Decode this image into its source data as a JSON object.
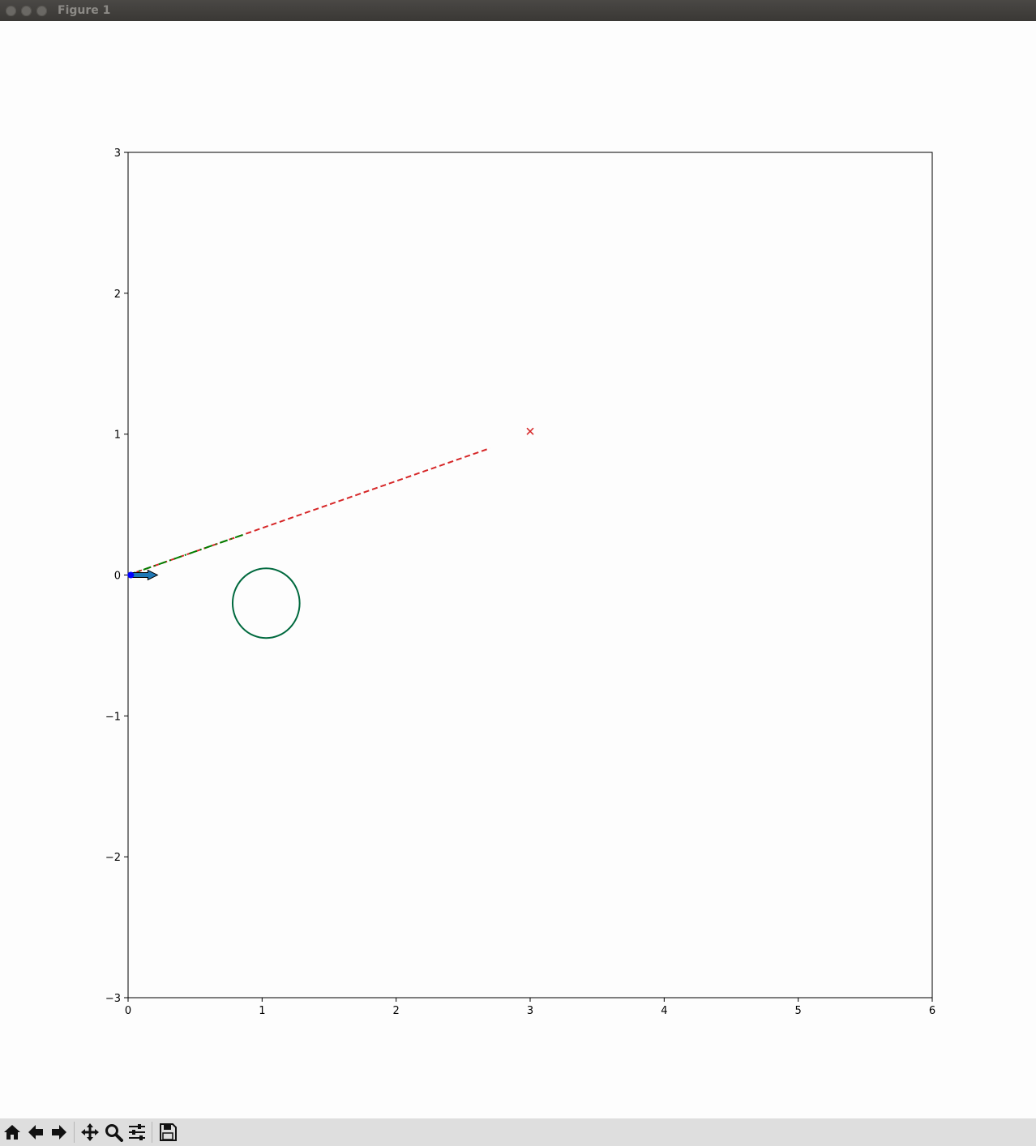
{
  "window": {
    "title": "Figure 1",
    "buttons": [
      "close",
      "minimize",
      "maximize"
    ]
  },
  "toolbar": {
    "buttons": [
      {
        "name": "home-button",
        "icon": "home-icon"
      },
      {
        "name": "back-button",
        "icon": "arrow-left-icon"
      },
      {
        "name": "forward-button",
        "icon": "arrow-right-icon"
      },
      {
        "name": "pan-button",
        "icon": "move-icon"
      },
      {
        "name": "zoom-button",
        "icon": "magnifier-icon"
      },
      {
        "name": "configure-subplots-button",
        "icon": "sliders-icon"
      },
      {
        "name": "save-button",
        "icon": "floppy-disk-icon"
      }
    ]
  },
  "chart_data": {
    "type": "line",
    "title": "",
    "xlabel": "",
    "ylabel": "",
    "xlim": [
      0,
      6
    ],
    "ylim": [
      -3,
      3
    ],
    "xticks": [
      "0",
      "1",
      "2",
      "3",
      "4",
      "5",
      "6"
    ],
    "yticks": [
      "3",
      "2",
      "1",
      "0",
      "−1",
      "−2",
      "−3"
    ],
    "grid": false,
    "series": [
      {
        "style": "dashed",
        "color": "#d62728",
        "x": [
          0.0,
          2.7
        ],
        "y": [
          0.0,
          0.9
        ]
      },
      {
        "style": "dashdot",
        "color": "#008000",
        "x": [
          0.0,
          0.87
        ],
        "y": [
          0.0,
          0.29
        ]
      }
    ],
    "goal_marker": {
      "marker": "x",
      "color": "#d62728",
      "x": 3.0,
      "y": 1.02
    },
    "start_point": {
      "marker": "o",
      "color": "#0000ff",
      "x": 0.02,
      "y": 0.0
    },
    "heading_arrow": {
      "x": 0.02,
      "y": 0.0,
      "dx": 0.2,
      "dy": 0.0,
      "color": "#1f77b4"
    },
    "obstacle_circle": {
      "cx": 1.03,
      "cy": -0.2,
      "r": 0.25,
      "color": "#00693e"
    }
  }
}
